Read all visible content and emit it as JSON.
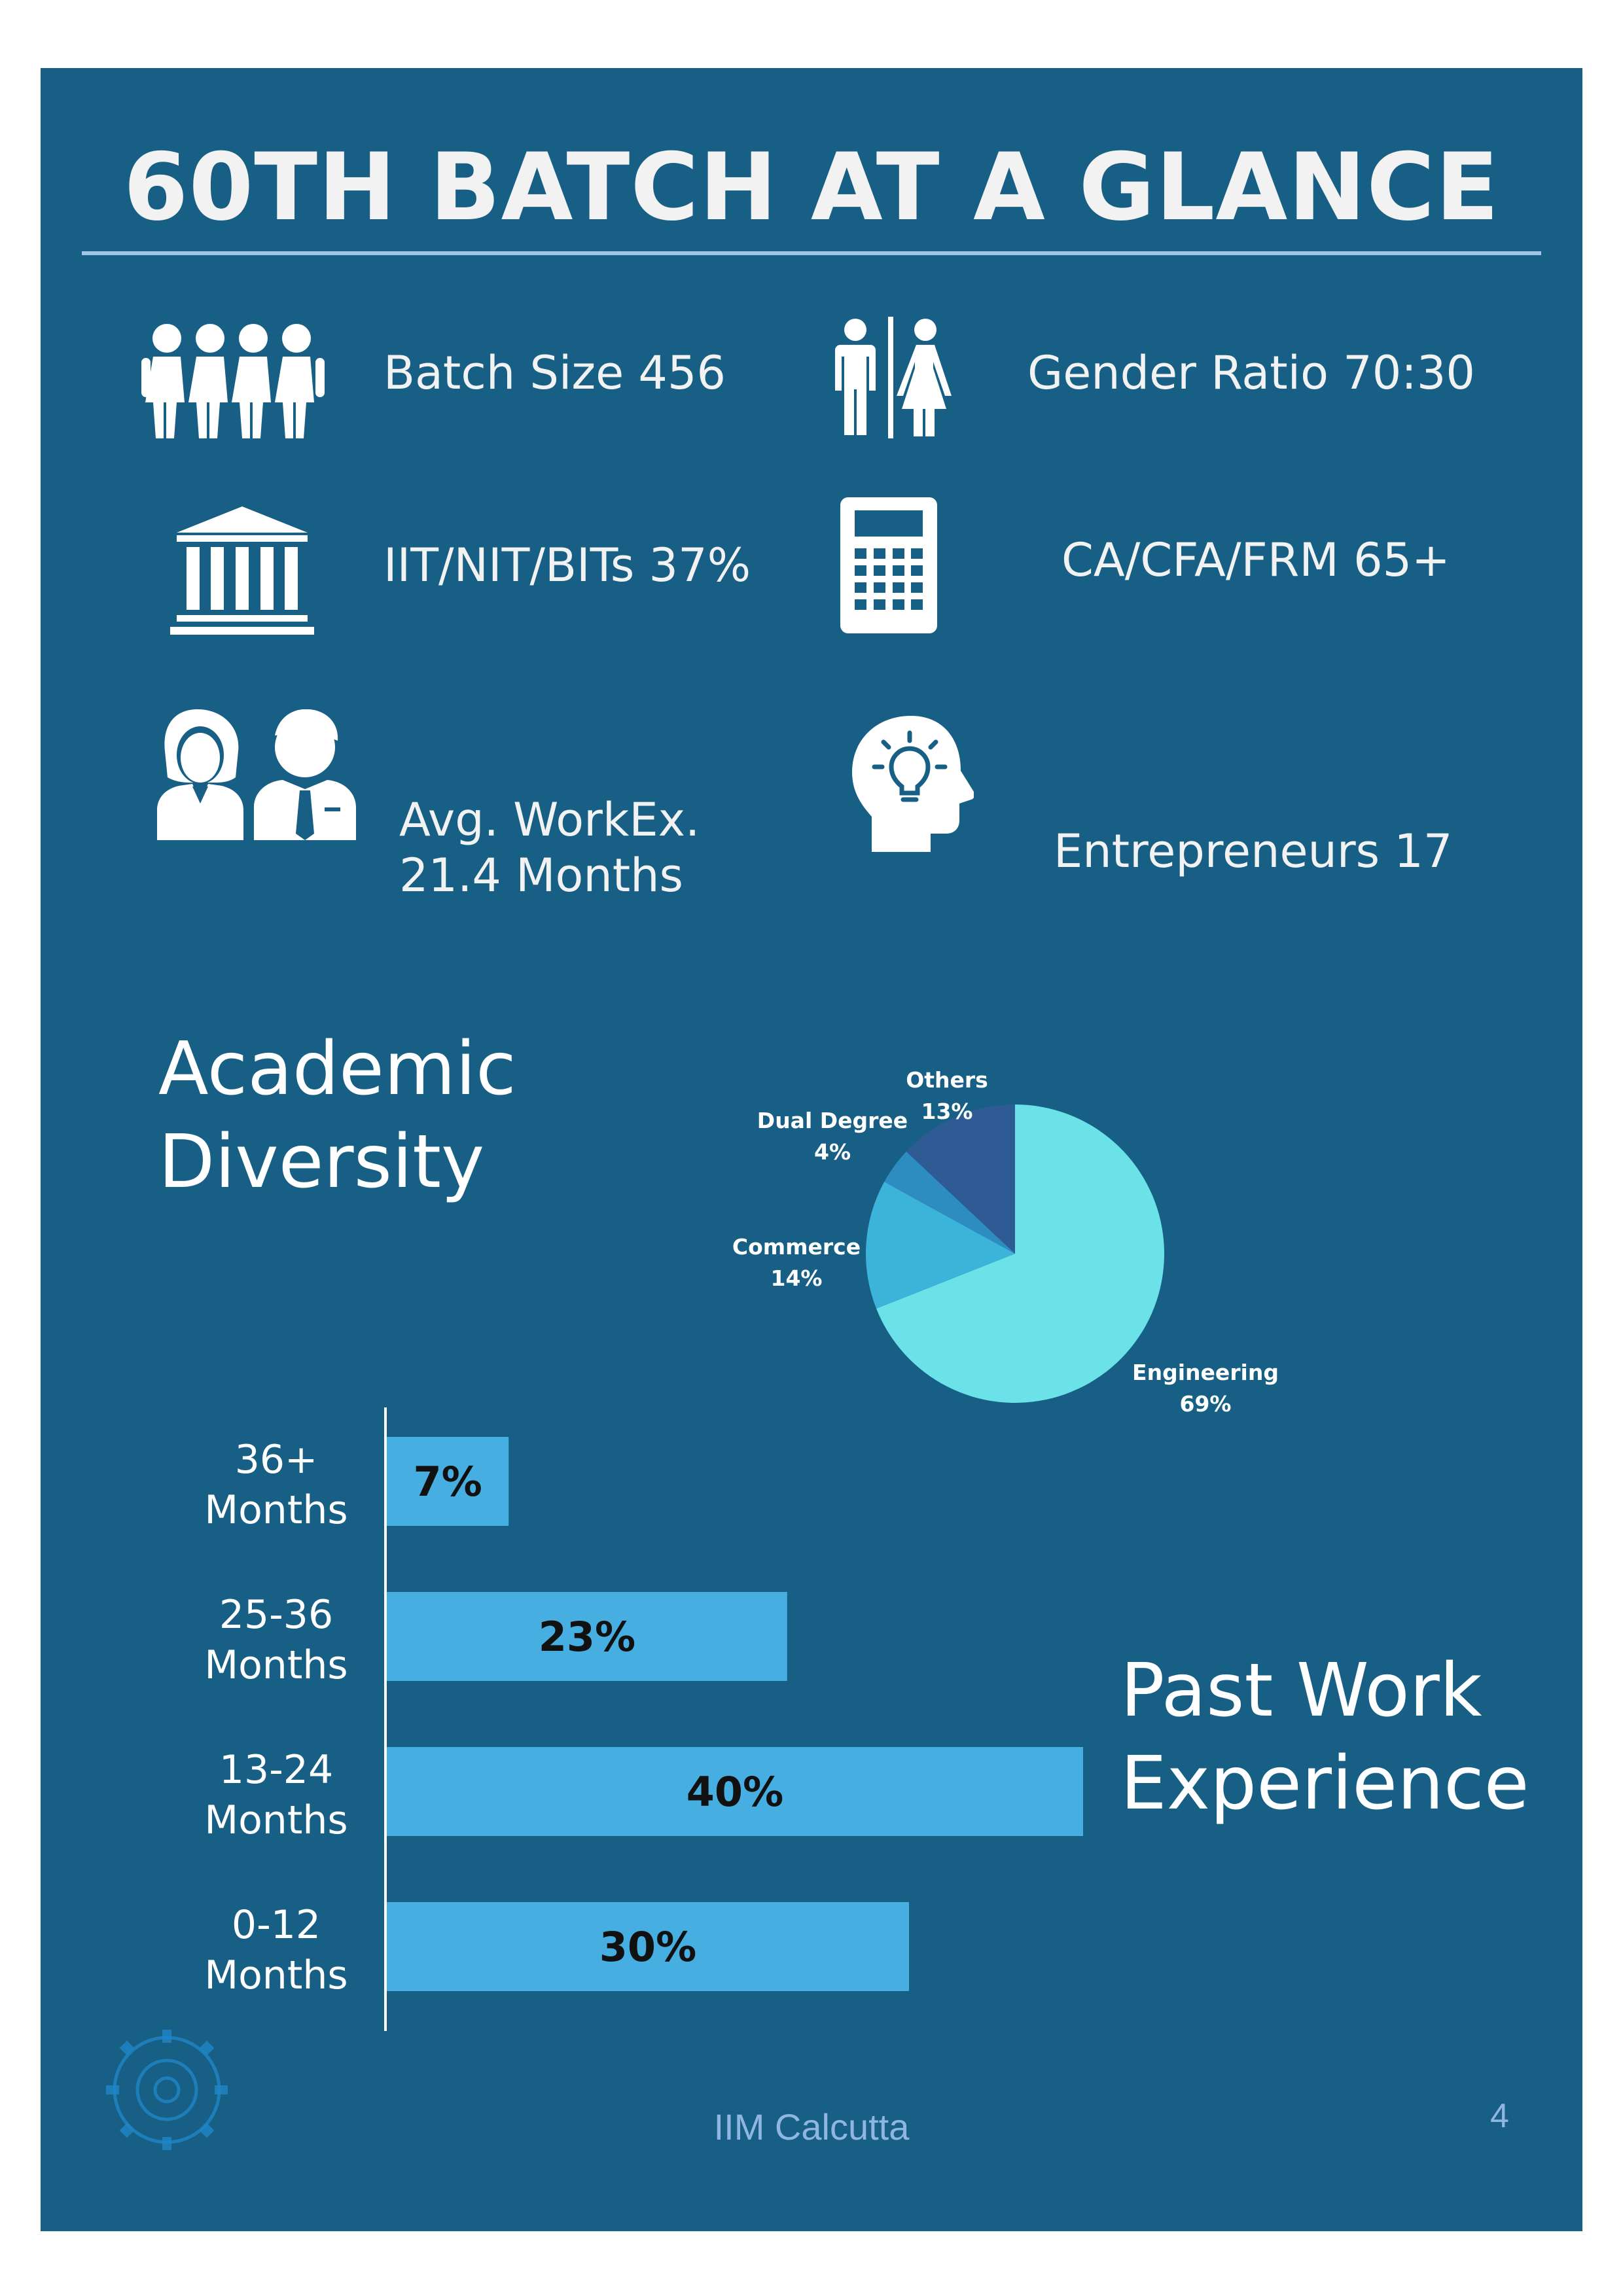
{
  "title": "60TH  BATCH AT A GLANCE",
  "stats": {
    "batch_size": "Batch Size 456",
    "gender_ratio": "Gender Ratio 70:30",
    "iit_nit_bits": "IIT/NIT/BITs 37%",
    "ca_cfa_frm": "CA/CFA/FRM 65+",
    "workex_line1": "Avg. WorkEx.",
    "workex_line2": "21.4 Months",
    "entrepreneurs": "Entrepreneurs 17"
  },
  "academic_title_line1": "Academic",
  "academic_title_line2": "Diversity",
  "work_title_line1": "Past Work",
  "work_title_line2": "Experience",
  "footer": {
    "org": "IIM Calcutta",
    "page": "4"
  },
  "colors": {
    "background": "#175f84",
    "bar": "#46aee0",
    "engineering": "#6ae2e8",
    "commerce": "#3cb3d9",
    "dual_degree": "#2d8cc0",
    "others": "#2f5b95"
  },
  "icons": [
    "people-group-icon",
    "gender-icon",
    "institution-icon",
    "calculator-icon",
    "professionals-icon",
    "idea-head-icon",
    "iim-logo-icon"
  ],
  "chart_data": [
    {
      "type": "pie",
      "title": "",
      "slices": [
        {
          "label": "Engineering",
          "value": 69,
          "display": "69%"
        },
        {
          "label": "Commerce",
          "value": 14,
          "display": "14%"
        },
        {
          "label": "Dual Degree",
          "value": 4,
          "display": "4%"
        },
        {
          "label": "Others",
          "value": 13,
          "display": "13%"
        }
      ]
    },
    {
      "type": "bar",
      "orientation": "horizontal",
      "title": "",
      "categories": [
        {
          "line1": "36+",
          "line2": "Months"
        },
        {
          "line1": "25-36",
          "line2": "Months"
        },
        {
          "line1": "13-24",
          "line2": "Months"
        },
        {
          "line1": "0-12",
          "line2": "Months"
        }
      ],
      "values": [
        7,
        23,
        40,
        30
      ],
      "value_labels": [
        "7%",
        "23%",
        "40%",
        "30%"
      ],
      "unit": "%",
      "xlim": [
        0,
        40
      ]
    }
  ]
}
